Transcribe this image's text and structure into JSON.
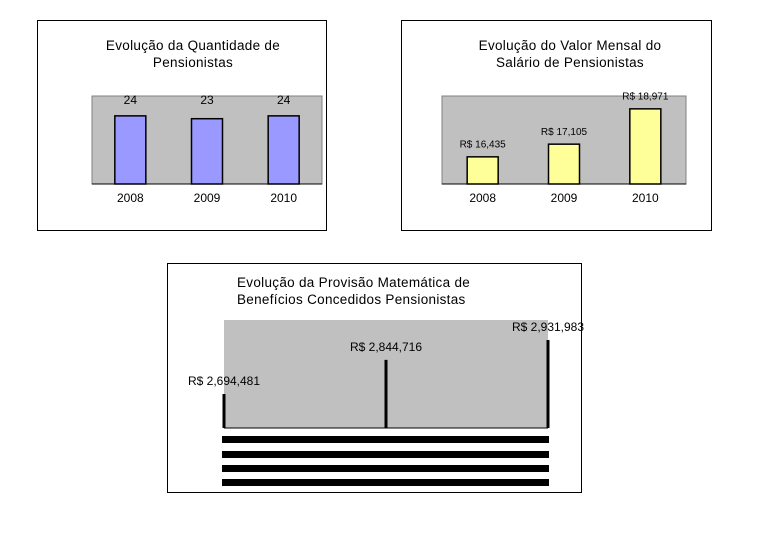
{
  "chart_data": [
    {
      "type": "bar",
      "title": "Evolução da Quantidade de Pensionistas",
      "categories": [
        "2008",
        "2009",
        "2010"
      ],
      "values": [
        24,
        23,
        24
      ],
      "color": "#9999ff",
      "ylim": [
        0,
        31
      ]
    },
    {
      "type": "bar",
      "title": "Evolução do Valor Mensal do Salário de Pensionistas",
      "categories": [
        "2008",
        "2009",
        "2010"
      ],
      "values": [
        16435,
        17105,
        18971
      ],
      "value_labels": [
        "R$ 16,435",
        "R$ 17,105",
        "R$ 18,971"
      ],
      "color": "#ffff99",
      "ylim": [
        15000,
        19650
      ]
    },
    {
      "type": "bar",
      "title": "Evolução da Provisão Matemática de Benefícios Concedidos Pensionistas",
      "categories": [
        null,
        null,
        null
      ],
      "values": [
        2694481,
        2844716,
        2931983
      ],
      "value_labels": [
        "R$ 2,694,481",
        "R$ 2,844,716",
        "R$ 2,931,983"
      ],
      "color": "#000000",
      "ylim": [
        2545000,
        3020000
      ]
    }
  ]
}
